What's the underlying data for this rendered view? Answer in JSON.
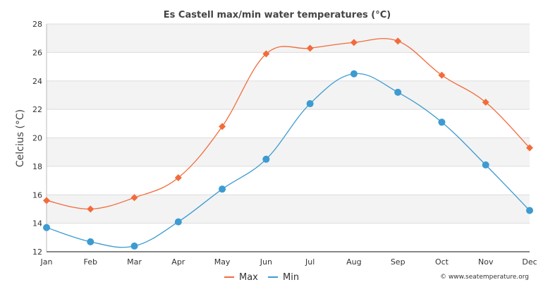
{
  "chart_data": {
    "type": "line",
    "title": "Es Castell max/min water temperatures (°C)",
    "ylabel": "Celcius (°C)",
    "xlabel": "",
    "categories": [
      "Jan",
      "Feb",
      "Mar",
      "Apr",
      "May",
      "Jun",
      "Jul",
      "Aug",
      "Sep",
      "Oct",
      "Nov",
      "Dec"
    ],
    "ylim": [
      12,
      28
    ],
    "yticks": [
      12,
      14,
      16,
      18,
      20,
      22,
      24,
      26,
      28
    ],
    "grid": "horizontal, alternating bands",
    "legend_position": "bottom-center",
    "series": [
      {
        "name": "Max",
        "color": "#f26b3a",
        "marker": "diamond",
        "values": [
          15.6,
          15.0,
          15.8,
          17.2,
          20.8,
          25.9,
          26.3,
          26.7,
          26.8,
          24.4,
          22.5,
          19.3
        ]
      },
      {
        "name": "Min",
        "color": "#3d9bd1",
        "marker": "circle",
        "values": [
          13.7,
          12.7,
          12.4,
          14.1,
          16.4,
          18.5,
          22.4,
          24.5,
          23.2,
          21.1,
          18.1,
          14.9
        ]
      }
    ],
    "credit": "© www.seatemperature.org"
  }
}
